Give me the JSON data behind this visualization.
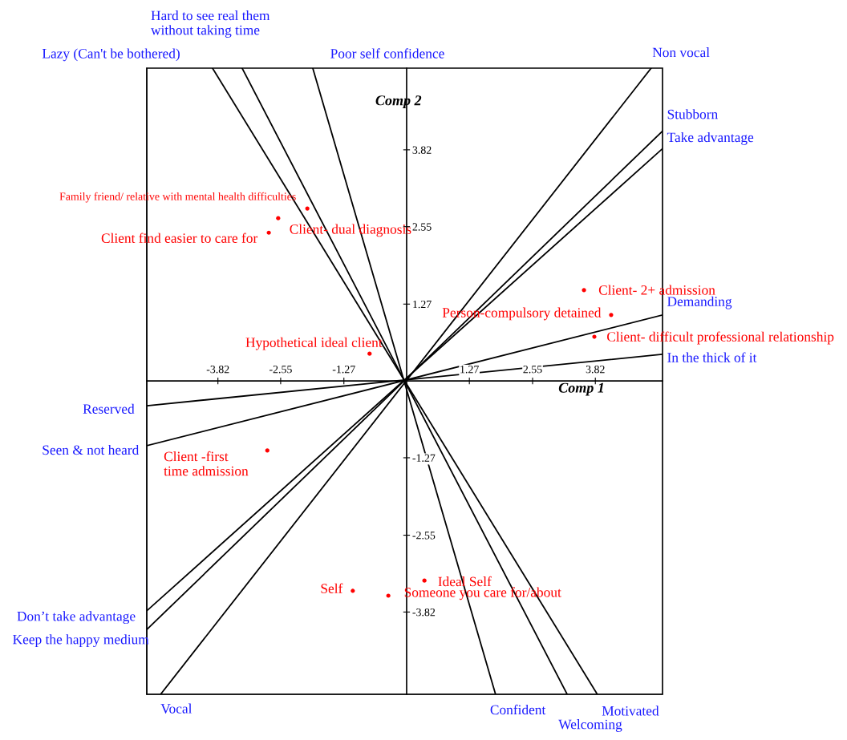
{
  "chart_data": {
    "type": "scatter",
    "xlabel": "Comp 1",
    "ylabel": "Comp 2",
    "xlim": [
      -5.26,
      5.18
    ],
    "ylim": [
      -5.18,
      5.17
    ],
    "xticks": [
      -3.82,
      -2.55,
      -1.27,
      1.27,
      2.55,
      3.82
    ],
    "yticks": [
      -3.82,
      -2.55,
      -1.27,
      1.27,
      2.55,
      3.82
    ],
    "series": [
      {
        "type": "line",
        "color": "#000000",
        "x": [
          -3.93,
          3.86
        ],
        "values": [
          5.17,
          -5.18
        ]
      },
      {
        "type": "line",
        "color": "#000000",
        "x": [
          -3.33,
          3.25
        ],
        "values": [
          5.17,
          -5.18
        ]
      },
      {
        "type": "line",
        "color": "#000000",
        "x": [
          -1.9,
          1.8
        ],
        "values": [
          5.17,
          -5.18
        ]
      },
      {
        "type": "line",
        "color": "#000000",
        "x": [
          4.95,
          -4.98
        ],
        "values": [
          5.17,
          -5.18
        ]
      },
      {
        "type": "line",
        "color": "#000000",
        "x": [
          5.18,
          -5.26
        ],
        "values": [
          4.13,
          -4.11
        ]
      },
      {
        "type": "line",
        "color": "#000000",
        "x": [
          5.18,
          -5.26
        ],
        "values": [
          3.84,
          -3.8
        ]
      },
      {
        "type": "line",
        "color": "#000000",
        "x": [
          5.18,
          -5.26
        ],
        "values": [
          1.09,
          -1.07
        ]
      },
      {
        "type": "line",
        "color": "#000000",
        "x": [
          5.18,
          -5.26
        ],
        "values": [
          0.44,
          -0.41
        ]
      },
      {
        "marker": "circle",
        "color": "#ff0000",
        "x": [
          -2.01,
          -2.6,
          -2.79,
          -0.75,
          3.59,
          4.14,
          3.8,
          -2.82,
          0.36,
          -1.09,
          -0.37
        ],
        "values": [
          2.85,
          2.69,
          2.45,
          0.45,
          1.5,
          1.09,
          0.73,
          -1.15,
          -3.3,
          -3.47,
          -3.55
        ]
      }
    ],
    "annotations": [
      {
        "text": "Lazy (Can't be bothered)",
        "x": -3.93,
        "y": 5.17
      },
      "Hard to see real them\nwithout taking time",
      {
        "text": "Poor self confidence",
        "x": -1.9,
        "y": 5.17
      },
      {
        "text": "Non vocal",
        "x": 4.95,
        "y": 5.17
      },
      {
        "text": "Stubborn",
        "x": 5.18,
        "y": 4.13
      },
      {
        "text": "Take advantage",
        "x": 5.18,
        "y": 3.84
      },
      {
        "text": "Demanding",
        "x": 5.18,
        "y": 1.09
      },
      {
        "text": "In the thick of it",
        "x": 5.18,
        "y": 0.44
      },
      {
        "text": "Motivated",
        "x": 3.86,
        "y": -5.18
      },
      "Welcoming",
      {
        "text": "Confident",
        "x": 1.8,
        "y": -5.18
      },
      {
        "text": "Vocal",
        "x": -4.98,
        "y": -5.18
      },
      {
        "text": "Keep the happy medium",
        "x": -5.26,
        "y": -4.11
      },
      {
        "text": "Don’t take advantage",
        "x": -5.26,
        "y": -3.8
      },
      {
        "text": "Seen & not heard",
        "x": -5.26,
        "y": -1.07
      },
      {
        "text": "Reserved",
        "x": -5.26,
        "y": -0.41
      },
      {
        "text": "Family friend/ relative with mental health difficulties",
        "x": -2.01,
        "y": 2.85
      },
      {
        "text": "Client- dual diagnosis",
        "x": -2.6,
        "y": 2.69
      },
      {
        "text": "Client find easier to care for",
        "x": -2.79,
        "y": 2.45
      },
      {
        "text": "Hypothetical ideal client",
        "x": -0.75,
        "y": 0.45
      },
      {
        "text": "Client- 2+ admission",
        "x": 3.59,
        "y": 1.5
      },
      {
        "text": "Person-compulsory detained",
        "x": 4.14,
        "y": 1.09
      },
      {
        "text": "Client- difficult professional relationship",
        "x": 3.8,
        "y": 0.73
      },
      {
        "text": "Client -first\ntime admission",
        "x": -2.82,
        "y": -1.15
      },
      {
        "text": "Ideal Self",
        "x": 0.36,
        "y": -3.3
      },
      {
        "text": "Self",
        "x": -1.09,
        "y": -3.47
      },
      {
        "text": "Someone you care for/about",
        "x": -0.37,
        "y": -3.55
      }
    ]
  }
}
